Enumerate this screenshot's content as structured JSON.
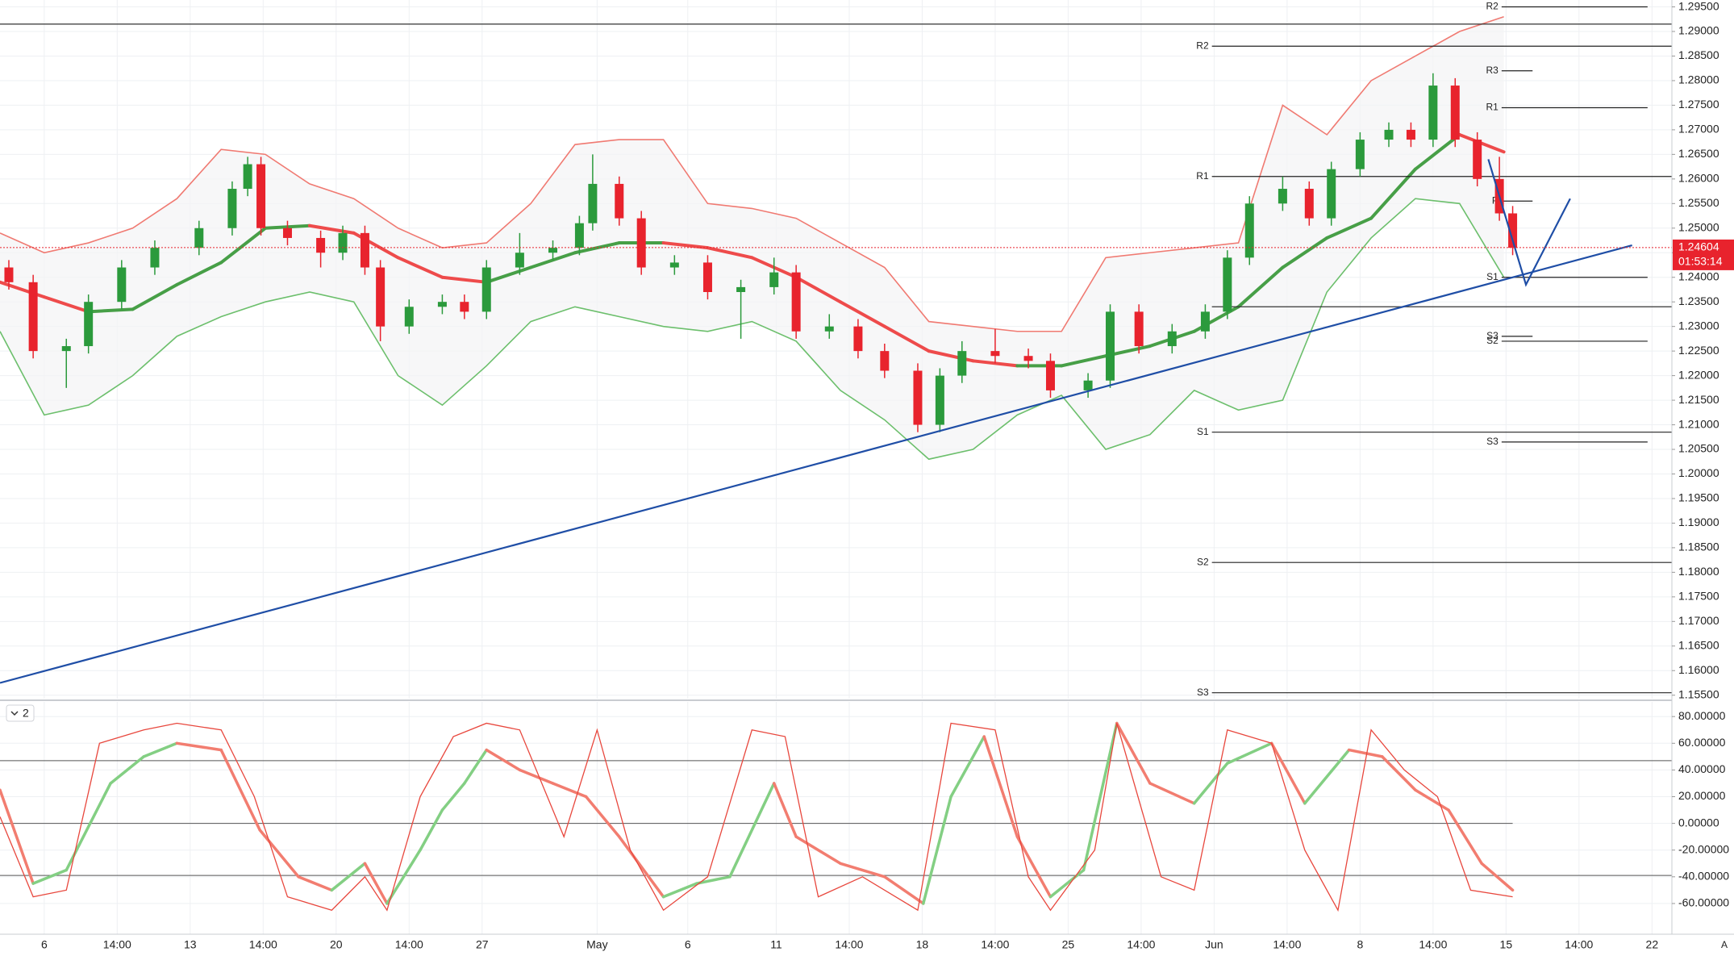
{
  "chart_data": [
    {
      "type": "candlestick",
      "x": [
        2,
        7.5,
        15,
        20,
        27.5,
        35,
        45,
        52.5,
        56,
        59,
        65,
        72.5,
        77.5,
        82.5,
        86,
        92.5,
        100,
        105,
        110,
        117.5,
        125,
        131,
        134,
        140,
        145,
        152.5,
        160,
        167.5,
        175,
        180,
        187.5,
        194,
        200,
        207.5,
        212.5,
        217.5,
        225,
        232.5,
        237.5,
        246,
        251,
        257.5,
        265,
        272.5,
        277.5,
        282.5,
        290,
        296,
        301,
        307.5,
        314,
        319,
        324,
        329,
        334,
        339,
        342
      ],
      "open": [
        1.242,
        1.239,
        1.225,
        1.226,
        1.235,
        1.242,
        1.246,
        1.25,
        1.258,
        1.263,
        1.25,
        1.248,
        1.245,
        1.249,
        1.242,
        1.23,
        1.234,
        1.235,
        1.233,
        1.242,
        1.245,
        1.246,
        1.251,
        1.259,
        1.252,
        1.242,
        1.243,
        1.237,
        1.238,
        1.241,
        1.229,
        1.23,
        1.225,
        1.221,
        1.21,
        1.22,
        1.225,
        1.224,
        1.223,
        1.217,
        1.219,
        1.233,
        1.226,
        1.229,
        1.233,
        1.244,
        1.255,
        1.258,
        1.252,
        1.262,
        1.268,
        1.27,
        1.268,
        1.279,
        1.268,
        1.26,
        1.253
      ],
      "high": [
        1.2435,
        1.2405,
        1.2275,
        1.2365,
        1.2435,
        1.2475,
        1.2515,
        1.2595,
        1.2645,
        1.2645,
        1.2515,
        1.2495,
        1.2505,
        1.2505,
        1.2435,
        1.2355,
        1.2365,
        1.2365,
        1.2435,
        1.249,
        1.2475,
        1.2525,
        1.265,
        1.2605,
        1.2535,
        1.2445,
        1.2445,
        1.2395,
        1.244,
        1.2425,
        1.2325,
        1.2315,
        1.2265,
        1.2225,
        1.2215,
        1.227,
        1.2295,
        1.2255,
        1.2245,
        1.2205,
        1.2345,
        1.2345,
        1.2305,
        1.2345,
        1.2455,
        1.2565,
        1.2605,
        1.2595,
        1.2635,
        1.2695,
        1.2715,
        1.2715,
        1.2815,
        1.2805,
        1.2695,
        1.2645,
        1.2545
      ],
      "low": [
        1.2375,
        1.2235,
        1.2175,
        1.2245,
        1.2335,
        1.2405,
        1.2445,
        1.2485,
        1.2565,
        1.2485,
        1.2465,
        1.242,
        1.2435,
        1.2405,
        1.227,
        1.2285,
        1.2325,
        1.2315,
        1.2315,
        1.2405,
        1.2435,
        1.2445,
        1.2495,
        1.2505,
        1.2405,
        1.2405,
        1.2355,
        1.2275,
        1.2365,
        1.2275,
        1.2275,
        1.2235,
        1.2195,
        1.2085,
        1.2085,
        1.2185,
        1.2225,
        1.2215,
        1.2155,
        1.2155,
        1.2175,
        1.2245,
        1.2245,
        1.2275,
        1.2315,
        1.2425,
        1.2535,
        1.2505,
        1.2505,
        1.2605,
        1.2665,
        1.2665,
        1.2665,
        1.2665,
        1.2585,
        1.2515,
        1.2445
      ],
      "close": [
        1.239,
        1.225,
        1.226,
        1.235,
        1.242,
        1.246,
        1.25,
        1.258,
        1.263,
        1.25,
        1.248,
        1.245,
        1.249,
        1.242,
        1.23,
        1.234,
        1.235,
        1.233,
        1.242,
        1.245,
        1.246,
        1.251,
        1.259,
        1.252,
        1.242,
        1.243,
        1.237,
        1.238,
        1.241,
        1.229,
        1.23,
        1.225,
        1.221,
        1.21,
        1.22,
        1.225,
        1.224,
        1.223,
        1.217,
        1.219,
        1.233,
        1.226,
        1.229,
        1.233,
        1.244,
        1.255,
        1.258,
        1.252,
        1.262,
        1.268,
        1.27,
        1.268,
        1.279,
        1.268,
        1.26,
        1.253,
        1.246
      ],
      "up_color": "#2b9a3c",
      "down_color": "#e8232d",
      "overlays": [
        {
          "x": [
            0,
            10,
            20,
            30,
            40,
            50,
            60,
            70,
            80,
            90,
            100,
            110,
            120,
            130,
            140,
            150,
            160,
            170,
            180,
            190,
            200,
            210,
            220,
            230,
            240,
            250,
            260,
            270,
            280,
            290,
            300,
            310,
            320,
            330,
            340
          ],
          "values": [
            1.249,
            1.245,
            1.247,
            1.25,
            1.256,
            1.266,
            1.265,
            1.259,
            1.256,
            1.25,
            1.246,
            1.247,
            1.255,
            1.267,
            1.268,
            1.268,
            1.255,
            1.254,
            1.252,
            1.247,
            1.242,
            1.231,
            1.23,
            1.229,
            1.229,
            1.244,
            1.245,
            1.246,
            1.247,
            1.275,
            1.269,
            1.28,
            1.285,
            1.29,
            1.293
          ],
          "color": "#f07a72",
          "width": 1.6
        },
        {
          "x": [
            0,
            10,
            20,
            30,
            40,
            50,
            60,
            70,
            80,
            90,
            100,
            110,
            120,
            130,
            140,
            150,
            160,
            170,
            180,
            190,
            200,
            210,
            220,
            230,
            240,
            250,
            260,
            270,
            280,
            290,
            300,
            310,
            320,
            330,
            340
          ],
          "values": [
            1.229,
            1.212,
            1.214,
            1.22,
            1.228,
            1.232,
            1.235,
            1.237,
            1.235,
            1.22,
            1.214,
            1.222,
            1.231,
            1.234,
            1.232,
            1.23,
            1.229,
            1.231,
            1.227,
            1.217,
            1.211,
            1.203,
            1.205,
            1.212,
            1.216,
            1.205,
            1.208,
            1.217,
            1.213,
            1.215,
            1.237,
            1.248,
            1.256,
            1.255,
            1.24
          ],
          "color": "#6cbf6c",
          "width": 1.6
        },
        {
          "x": [
            0,
            10,
            20,
            30,
            40,
            50,
            60,
            70,
            80,
            90,
            100,
            110,
            120,
            130,
            140,
            150,
            160,
            170,
            180,
            190,
            200,
            210,
            220,
            230,
            240,
            250,
            260,
            270,
            280,
            290,
            300,
            310,
            320,
            330,
            340
          ],
          "values": [
            1.239,
            1.236,
            1.233,
            1.2335,
            1.2385,
            1.243,
            1.25,
            1.2505,
            1.249,
            1.244,
            1.24,
            1.239,
            1.242,
            1.245,
            1.247,
            1.247,
            1.246,
            1.244,
            1.24,
            1.235,
            1.23,
            1.225,
            1.223,
            1.222,
            1.222,
            1.224,
            1.226,
            1.229,
            1.234,
            1.242,
            1.248,
            1.252,
            1.262,
            1.269,
            1.2655
          ],
          "up_color": "#479f47",
          "down_color": "#ee4b4b",
          "width": 4
        }
      ],
      "levels": [
        {
          "label": "R2",
          "value": 1.287,
          "x": [
            274,
            378
          ]
        },
        {
          "label": "R1",
          "value": 1.2605,
          "x": [
            274,
            378
          ]
        },
        {
          "label": "S1",
          "value": 1.2085,
          "x": [
            274,
            378
          ]
        },
        {
          "label": "S2",
          "value": 1.182,
          "x": [
            274,
            378
          ]
        },
        {
          "label": "S3",
          "value": 1.1555,
          "x": [
            274,
            378
          ]
        },
        {
          "label": "R2",
          "value": 1.295,
          "x": [
            339.5,
            372.5
          ]
        },
        {
          "label": "R3",
          "value": 1.282,
          "x": [
            339.5,
            346.5
          ]
        },
        {
          "label": "R1",
          "value": 1.2745,
          "x": [
            339.5,
            372.5
          ]
        },
        {
          "label": "P",
          "value": 1.2555,
          "x": [
            339.5,
            346.5
          ]
        },
        {
          "label": "S1",
          "value": 1.24,
          "x": [
            339.5,
            372.5
          ]
        },
        {
          "label": "S3",
          "value": 1.228,
          "x": [
            339.5,
            346.5
          ]
        },
        {
          "label": "S2",
          "value": 1.227,
          "x": [
            339.5,
            372.5
          ]
        },
        {
          "label": "S3",
          "value": 1.2065,
          "x": [
            339.5,
            372.5
          ]
        }
      ],
      "hlines": [
        {
          "value": 1.2915,
          "x": [
            0,
            378
          ]
        },
        {
          "value": 1.234,
          "x": [
            274,
            378
          ]
        }
      ],
      "lines": [
        {
          "x": [
            0,
            369
          ],
          "y": [
            1.1575,
            1.2465
          ],
          "color": "#1f4ea6"
        },
        {
          "x": [
            336.5,
            345,
            355
          ],
          "y": [
            1.264,
            1.2385,
            1.256
          ],
          "color": "#1f4ea6"
        }
      ],
      "last_price": 1.24604,
      "countdown": "01:53:14",
      "last_color": "#e8232d",
      "xlim": [
        0,
        378
      ],
      "ylim": [
        1.1543,
        1.2964
      ],
      "yticks": [
        {
          "value": 1.295,
          "label": "1.29500"
        },
        {
          "value": 1.29,
          "label": "1.29000"
        },
        {
          "value": 1.285,
          "label": "1.28500"
        },
        {
          "value": 1.28,
          "label": "1.28000"
        },
        {
          "value": 1.275,
          "label": "1.27500"
        },
        {
          "value": 1.27,
          "label": "1.27000"
        },
        {
          "value": 1.265,
          "label": "1.26500"
        },
        {
          "value": 1.26,
          "label": "1.26000"
        },
        {
          "value": 1.255,
          "label": "1.25500"
        },
        {
          "value": 1.25,
          "label": "1.25000"
        },
        {
          "value": 1.245,
          "label": "1.24500"
        },
        {
          "value": 1.24,
          "label": "1.24000"
        },
        {
          "value": 1.235,
          "label": "1.23500"
        },
        {
          "value": 1.23,
          "label": "1.23000"
        },
        {
          "value": 1.225,
          "label": "1.22500"
        },
        {
          "value": 1.22,
          "label": "1.22000"
        },
        {
          "value": 1.215,
          "label": "1.21500"
        },
        {
          "value": 1.21,
          "label": "1.21000"
        },
        {
          "value": 1.205,
          "label": "1.20500"
        },
        {
          "value": 1.2,
          "label": "1.20000"
        },
        {
          "value": 1.195,
          "label": "1.19500"
        },
        {
          "value": 1.19,
          "label": "1.19000"
        },
        {
          "value": 1.185,
          "label": "1.18500"
        },
        {
          "value": 1.18,
          "label": "1.18000"
        },
        {
          "value": 1.175,
          "label": "1.17500"
        },
        {
          "value": 1.17,
          "label": "1.17000"
        },
        {
          "value": 1.165,
          "label": "1.16500"
        },
        {
          "value": 1.16,
          "label": "1.16000"
        },
        {
          "value": 1.155,
          "label": "1.15500"
        }
      ],
      "xticks": [
        {
          "value": 10,
          "label": "6"
        },
        {
          "value": 26.5,
          "label": "14:00"
        },
        {
          "value": 43,
          "label": "13"
        },
        {
          "value": 59.5,
          "label": "14:00"
        },
        {
          "value": 76,
          "label": "20"
        },
        {
          "value": 92.5,
          "label": "14:00"
        },
        {
          "value": 109,
          "label": "27"
        },
        {
          "value": 135,
          "label": "May"
        },
        {
          "value": 155.5,
          "label": "6"
        },
        {
          "value": 175.5,
          "label": "11"
        },
        {
          "value": 192,
          "label": "14:00"
        },
        {
          "value": 208.5,
          "label": "18"
        },
        {
          "value": 225,
          "label": "14:00"
        },
        {
          "value": 241.5,
          "label": "25"
        },
        {
          "value": 258,
          "label": "14:00"
        },
        {
          "value": 274.5,
          "label": "Jun"
        },
        {
          "value": 291,
          "label": "14:00"
        },
        {
          "value": 307.5,
          "label": "8"
        },
        {
          "value": 324,
          "label": "14:00"
        },
        {
          "value": 340.5,
          "label": "15"
        },
        {
          "value": 357,
          "label": "14:00"
        },
        {
          "value": 373.5,
          "label": "22"
        }
      ],
      "grid": true
    },
    {
      "type": "line",
      "label": "2",
      "series": [
        {
          "x": [
            0,
            7.5,
            15,
            25,
            32.5,
            40,
            50,
            58.75,
            67.5,
            75,
            82.5,
            87.5,
            95,
            100,
            105,
            110,
            117.5,
            125,
            132.5,
            140,
            150,
            157.5,
            165,
            175,
            180,
            190,
            200,
            208.75,
            215,
            222.5,
            230,
            237.5,
            245,
            252.5,
            260,
            270,
            277.5,
            287.5,
            295,
            305,
            312.5,
            320,
            327.5,
            335,
            342
          ],
          "values": [
            25,
            -45,
            -35,
            30,
            50,
            60,
            55,
            -5,
            -40,
            -50,
            -30,
            -60,
            -20,
            10,
            30,
            55,
            40,
            30,
            20,
            -10,
            -55,
            -45,
            -40,
            30,
            -10,
            -30,
            -40,
            -60,
            20,
            65,
            -10,
            -55,
            -35,
            75,
            30,
            15,
            45,
            60,
            15,
            55,
            50,
            25,
            10,
            -30,
            -50
          ],
          "up_color": "#83cf83",
          "down_color": "#f27d70",
          "width": 3.5
        },
        {
          "x": [
            0,
            7.5,
            15,
            22.5,
            32.5,
            40,
            50,
            57.5,
            65,
            75,
            82.5,
            87.5,
            95,
            102.5,
            110,
            117.5,
            127.5,
            135,
            142.5,
            150,
            160,
            170,
            177.5,
            185,
            195,
            207.5,
            215,
            225,
            232.5,
            237.5,
            247.5,
            252.5,
            262.5,
            270,
            277.5,
            287.5,
            295,
            302.5,
            310,
            317.5,
            325,
            332.5,
            342
          ],
          "values": [
            5,
            -55,
            -50,
            60,
            70,
            75,
            70,
            20,
            -55,
            -65,
            -40,
            -65,
            20,
            65,
            75,
            70,
            -10,
            70,
            -20,
            -65,
            -40,
            70,
            65,
            -55,
            -40,
            -65,
            75,
            70,
            -40,
            -65,
            -20,
            75,
            -40,
            -50,
            70,
            60,
            -20,
            -65,
            70,
            40,
            20,
            -50,
            -55
          ],
          "color": "#e8473d",
          "width": 1.3
        }
      ],
      "hlines": [
        {
          "value": 47,
          "x": [
            0,
            378
          ]
        },
        {
          "value": 0,
          "x": [
            0,
            342
          ]
        },
        {
          "value": -39,
          "x": [
            0,
            378
          ]
        }
      ],
      "xlim": [
        0,
        378
      ],
      "ylim": [
        -83,
        91
      ],
      "yticks": [
        {
          "value": 80,
          "label": "80.00000"
        },
        {
          "value": 60,
          "label": "60.00000"
        },
        {
          "value": 40,
          "label": "40.00000"
        },
        {
          "value": 20,
          "label": "20.00000"
        },
        {
          "value": 0,
          "label": "0.00000"
        },
        {
          "value": -20,
          "label": "-20.00000"
        },
        {
          "value": -40,
          "label": "-40.00000"
        },
        {
          "value": -60,
          "label": "-60.00000"
        }
      ],
      "grid": true
    }
  ],
  "auto_scale_label": "A"
}
